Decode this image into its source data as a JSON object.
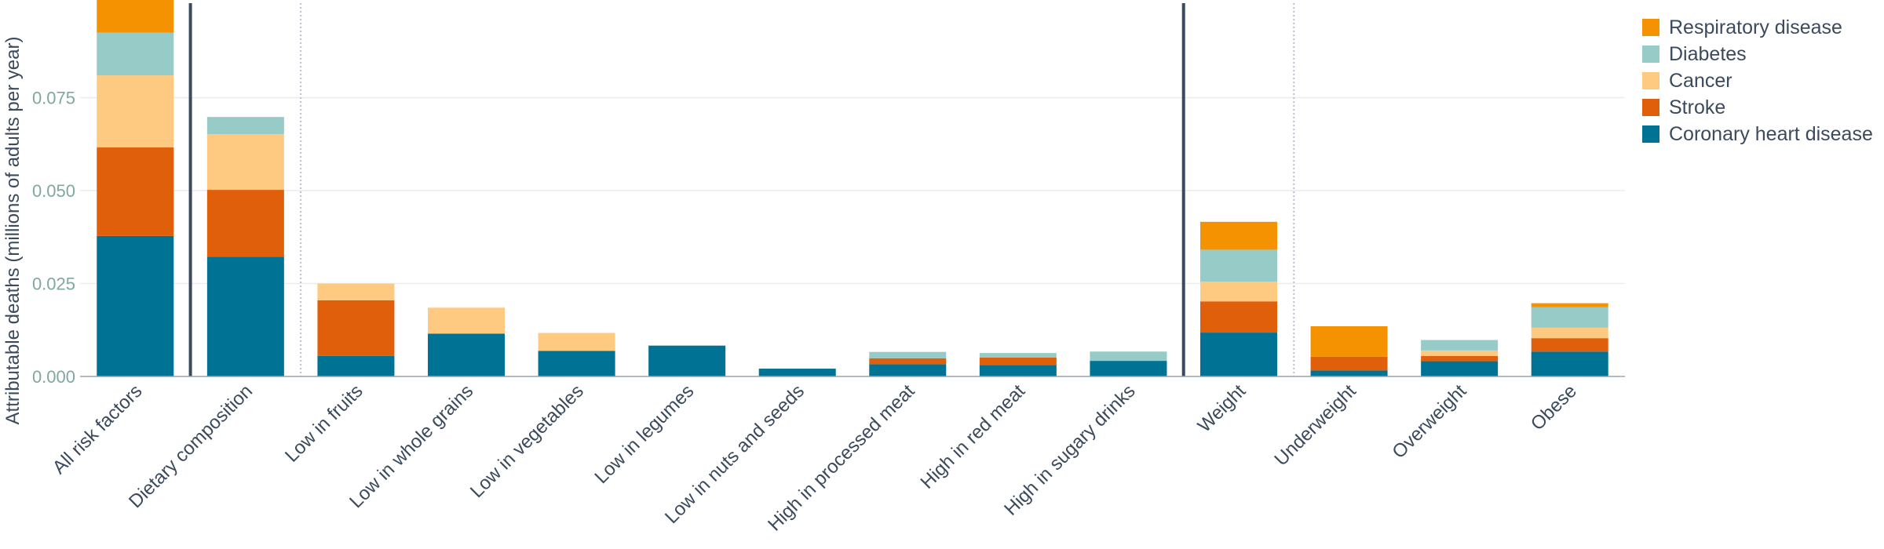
{
  "chart_data": {
    "type": "bar",
    "stacked": true,
    "title": "",
    "xlabel": "",
    "ylabel": "Attributable deaths (millions of adults per year)",
    "ylim": [
      0,
      0.1
    ],
    "yticks": [
      "0.000",
      "0.025",
      "0.050",
      "0.075"
    ],
    "ytick_values": [
      0,
      0.025,
      0.05,
      0.075
    ],
    "grid": true,
    "legend_position": "top-right",
    "categories": [
      "All risk factors",
      "Dietary composition",
      "Low in fruits",
      "Low in whole grains",
      "Low in vegetables",
      "Low in legumes",
      "Low in nuts and seeds",
      "High in processed meat",
      "High in red meat",
      "High in sugary drinks",
      "Weight",
      "Underweight",
      "Overweight",
      "Obese"
    ],
    "series": [
      {
        "name": "Coronary heart disease",
        "color": "#007394",
        "values": [
          0.0378,
          0.0322,
          0.0055,
          0.0115,
          0.0069,
          0.0083,
          0.0021,
          0.0033,
          0.0031,
          0.0042,
          0.0118,
          0.0016,
          0.0041,
          0.0067
        ]
      },
      {
        "name": "Stroke",
        "color": "#e05f0b",
        "values": [
          0.0238,
          0.018,
          0.015,
          0,
          0,
          0,
          0,
          0.0016,
          0.002,
          0,
          0.0084,
          0.0037,
          0.0014,
          0.0036
        ]
      },
      {
        "name": "Cancer",
        "color": "#fec980",
        "values": [
          0.0194,
          0.015,
          0.0045,
          0.007,
          0.0048,
          0,
          0,
          0,
          0,
          0,
          0.0053,
          0,
          0.0015,
          0.0028
        ]
      },
      {
        "name": "Diabetes",
        "color": "#96cbc7",
        "values": [
          0.0115,
          0.0046,
          0,
          0,
          0,
          0,
          0,
          0.0017,
          0.0012,
          0.0025,
          0.0086,
          0,
          0.0028,
          0.0055
        ]
      },
      {
        "name": "Respiratory disease",
        "color": "#f49201",
        "values": [
          0.0095,
          0,
          0,
          0,
          0,
          0,
          0,
          0,
          0,
          0,
          0.0075,
          0.0082,
          0,
          0.0011
        ]
      }
    ],
    "legend_order": [
      "Respiratory disease",
      "Diabetes",
      "Cancer",
      "Stroke",
      "Coronary heart disease"
    ],
    "separators": [
      {
        "after_category": 0,
        "style": "solid"
      },
      {
        "after_category": 1,
        "style": "dotted"
      },
      {
        "after_category": 9,
        "style": "solid"
      },
      {
        "after_category": 10,
        "style": "dotted"
      }
    ],
    "colors": {
      "axis_tick": "#7fa8a0",
      "text": "#3b4a5c",
      "separator": "#3b4a5c",
      "grid": "#ececec"
    }
  }
}
